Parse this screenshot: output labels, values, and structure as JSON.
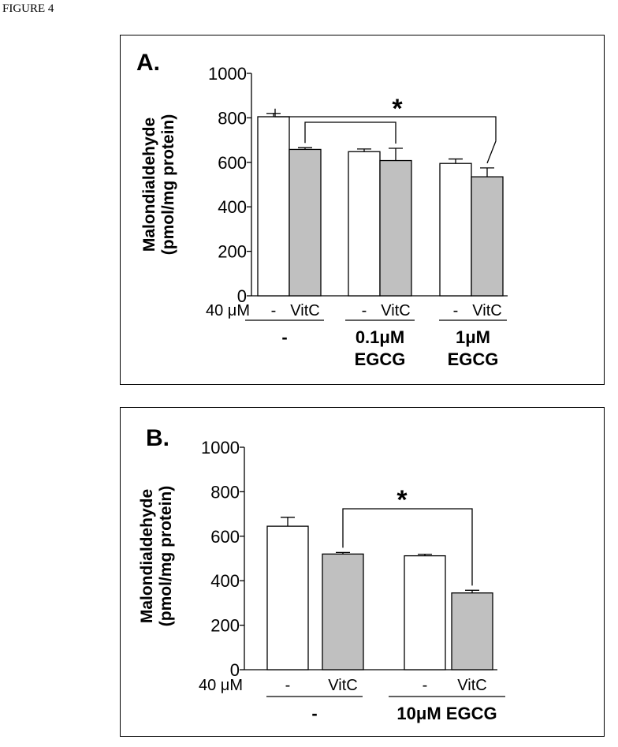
{
  "figure_label": "FIGURE 4",
  "colors": {
    "control_bar": "#ffffff",
    "vitc_bar": "#c0c0c0",
    "stroke": "#000000"
  },
  "chart_data": [
    {
      "type": "bar",
      "panel": "A.",
      "ylabel_line1": "Malondialdehyde",
      "ylabel_line2": "(pmol/mg protein)",
      "ylim": [
        0,
        1000
      ],
      "y_ticks": [
        "0",
        "200",
        "400",
        "600",
        "800",
        "1000"
      ],
      "row_label": "40 μM",
      "condition_labels": [
        "-",
        "VitC",
        "-",
        "VitC",
        "-",
        "VitC"
      ],
      "group_labels": [
        [
          "-"
        ],
        [
          "0.1μM",
          "EGCG"
        ],
        [
          "1μM",
          "EGCG"
        ]
      ],
      "series": [
        {
          "name": "-",
          "values": [
            805,
            648,
            595
          ],
          "errors": [
            15,
            12,
            20
          ]
        },
        {
          "name": "VitC",
          "values": [
            658,
            608,
            535
          ],
          "errors": [
            8,
            55,
            40
          ]
        }
      ],
      "significance": "*"
    },
    {
      "type": "bar",
      "panel": "B.",
      "ylabel_line1": "Malondialdehyde",
      "ylabel_line2": "(pmol/mg protein)",
      "ylim": [
        0,
        1000
      ],
      "y_ticks": [
        "0",
        "200",
        "400",
        "600",
        "800",
        "1000"
      ],
      "row_label": "40 μM",
      "condition_labels": [
        "-",
        "VitC",
        "-",
        "VitC"
      ],
      "group_labels": [
        [
          "-"
        ],
        [
          "10μM EGCG"
        ]
      ],
      "series": [
        {
          "name": "-",
          "values": [
            645,
            512
          ],
          "errors": [
            40,
            7
          ]
        },
        {
          "name": "VitC",
          "values": [
            520,
            345
          ],
          "errors": [
            7,
            12
          ]
        }
      ],
      "significance": "*"
    }
  ]
}
